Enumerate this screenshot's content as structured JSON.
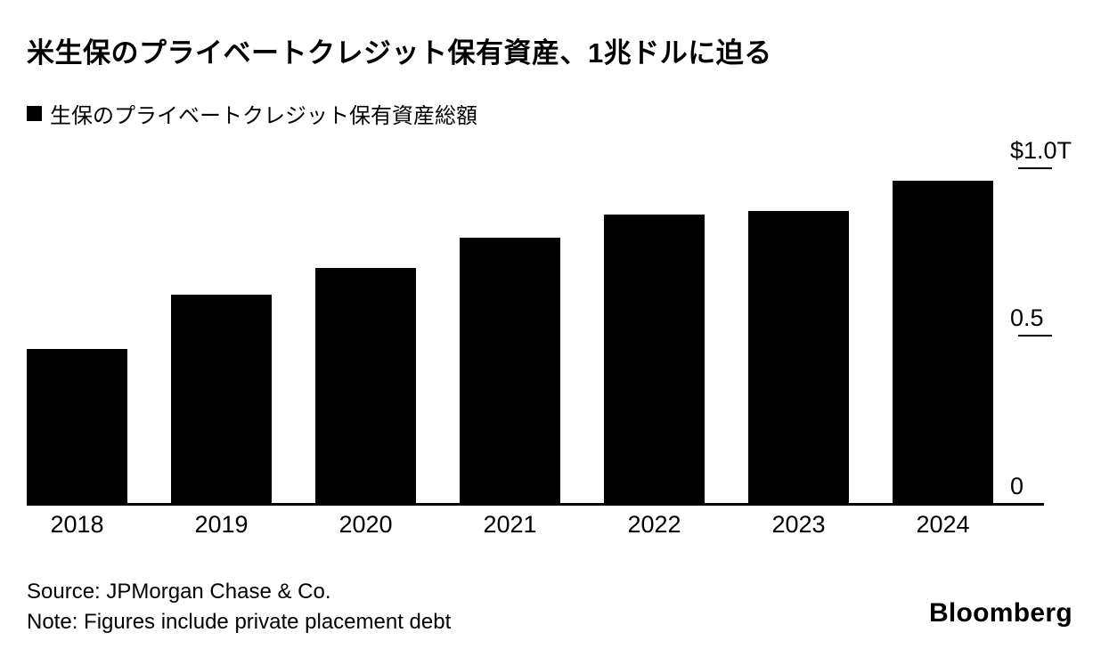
{
  "header": {
    "title": "米生保のプライベートクレジット保有資産、1兆ドルに迫る",
    "legend_label": "生保のプライベートクレジット保有資産総額"
  },
  "chart_data": {
    "type": "bar",
    "title": "米生保のプライベートクレジット保有資産、1兆ドルに迫る",
    "legend": [
      "生保のプライベートクレジット保有資産総額"
    ],
    "legend_position": "top-left",
    "categories": [
      "2018",
      "2019",
      "2020",
      "2021",
      "2022",
      "2023",
      "2024"
    ],
    "values": [
      0.46,
      0.62,
      0.7,
      0.79,
      0.86,
      0.87,
      0.96
    ],
    "xlabel": "",
    "ylabel": "",
    "ylim": [
      0,
      1.0
    ],
    "yticks": [
      {
        "value": 1.0,
        "label": "$1.0T",
        "tick": true
      },
      {
        "value": 0.5,
        "label": "0.5",
        "tick": true
      },
      {
        "value": 0.0,
        "label": "0",
        "tick": false
      }
    ],
    "bar_color": "#000000",
    "grid": false
  },
  "footer": {
    "source": "Source: JPMorgan Chase & Co.",
    "note": "Note: Figures include private placement debt",
    "brand": "Bloomberg"
  }
}
